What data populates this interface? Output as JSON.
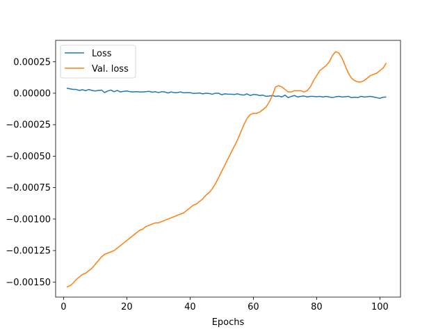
{
  "chart_data": {
    "type": "line",
    "title": "",
    "xlabel": "Epochs",
    "ylabel": "",
    "xlim": [
      -2.5,
      106.5
    ],
    "ylim": [
      -0.00162,
      0.00042
    ],
    "xticks": [
      0,
      20,
      40,
      60,
      80,
      100
    ],
    "xtick_labels": [
      "0",
      "20",
      "40",
      "60",
      "80",
      "100"
    ],
    "yticks": [
      -0.0015,
      -0.00125,
      -0.001,
      -0.00075,
      -0.0005,
      -0.00025,
      0.0,
      0.00025
    ],
    "ytick_labels": [
      "−0.00150",
      "−0.00125",
      "−0.00100",
      "−0.00075",
      "−0.00050",
      "−0.00025",
      "0.00000",
      "0.00025"
    ],
    "grid": false,
    "legend_position": "top-left",
    "series": [
      {
        "name": "Loss",
        "color": "#1f77b4",
        "x": [
          1,
          2,
          3,
          4,
          5,
          6,
          7,
          8,
          9,
          10,
          11,
          12,
          13,
          14,
          15,
          16,
          17,
          18,
          19,
          20,
          21,
          22,
          23,
          24,
          25,
          26,
          27,
          28,
          29,
          30,
          31,
          32,
          33,
          34,
          35,
          36,
          37,
          38,
          39,
          40,
          41,
          42,
          43,
          44,
          45,
          46,
          47,
          48,
          49,
          50,
          51,
          52,
          53,
          54,
          55,
          56,
          57,
          58,
          59,
          60,
          61,
          62,
          63,
          64,
          65,
          66,
          67,
          68,
          69,
          70,
          71,
          72,
          73,
          74,
          75,
          76,
          77,
          78,
          79,
          80,
          81,
          82,
          83,
          84,
          85,
          86,
          87,
          88,
          89,
          90,
          91,
          92,
          93,
          94,
          95,
          96,
          97,
          98,
          99,
          100,
          101,
          102
        ],
        "values": [
          4e-05,
          3.5e-05,
          3e-05,
          3e-05,
          2.2e-05,
          2.8e-05,
          2e-05,
          3e-05,
          2.2e-05,
          1.8e-05,
          2.2e-05,
          2.5e-05,
          5e-06,
          1.8e-05,
          2.5e-05,
          1.2e-05,
          2.2e-05,
          1e-05,
          1.5e-05,
          1.8e-05,
          1.2e-05,
          1e-05,
          1.2e-05,
          1e-05,
          1e-05,
          1.2e-05,
          1.5e-05,
          8e-06,
          1.2e-05,
          5e-06,
          1.2e-05,
          1e-05,
          2e-06,
          1e-05,
          5e-06,
          5e-06,
          1e-05,
          3e-06,
          5e-06,
          5e-06,
          -2e-06,
          0.0,
          2e-06,
          -5e-06,
          0.0,
          -2e-06,
          -8e-06,
          0.0,
          0.0,
          -1.2e-05,
          -5e-06,
          -8e-06,
          -8e-06,
          -1e-05,
          -5e-06,
          -1.2e-05,
          -1.5e-05,
          -5e-06,
          -1.8e-05,
          -1e-05,
          -1.2e-05,
          -1.8e-05,
          -1.5e-05,
          -2.5e-05,
          -2.2e-05,
          -1.8e-05,
          -2.5e-05,
          -2.2e-05,
          -3e-05,
          -1.5e-05,
          -3.5e-05,
          -2.5e-05,
          -1.8e-05,
          -3e-05,
          -2.5e-05,
          -2.2e-05,
          -3e-05,
          -2.5e-05,
          -2.5e-05,
          -2.8e-05,
          -2.5e-05,
          -3e-05,
          -2.5e-05,
          -3e-05,
          -3.5e-05,
          -2.8e-05,
          -2.5e-05,
          -3e-05,
          -2.8e-05,
          -2.5e-05,
          -3.5e-05,
          -3.2e-05,
          -3.5e-05,
          -2.5e-05,
          -3e-05,
          -2.8e-05,
          -2.5e-05,
          -3e-05,
          -3.5e-05,
          -4e-05,
          -3.2e-05,
          -3e-05
        ]
      },
      {
        "name": "Val. loss",
        "color": "#ff7f0e",
        "x": [
          1,
          2,
          3,
          4,
          5,
          6,
          7,
          8,
          9,
          10,
          11,
          12,
          13,
          14,
          15,
          16,
          17,
          18,
          19,
          20,
          21,
          22,
          23,
          24,
          25,
          26,
          27,
          28,
          29,
          30,
          31,
          32,
          33,
          34,
          35,
          36,
          37,
          38,
          39,
          40,
          41,
          42,
          43,
          44,
          45,
          46,
          47,
          48,
          49,
          50,
          51,
          52,
          53,
          54,
          55,
          56,
          57,
          58,
          59,
          60,
          61,
          62,
          63,
          64,
          65,
          66,
          67,
          68,
          69,
          70,
          71,
          72,
          73,
          74,
          75,
          76,
          77,
          78,
          79,
          80,
          81,
          82,
          83,
          84,
          85,
          86,
          87,
          88,
          89,
          90,
          91,
          92,
          93,
          94,
          95,
          96,
          97,
          98,
          99,
          100,
          101,
          102
        ],
        "values": [
          -0.00154,
          -0.00153,
          -0.00151,
          -0.00148,
          -0.00146,
          -0.00144,
          -0.00143,
          -0.00141,
          -0.00139,
          -0.00136,
          -0.00133,
          -0.0013,
          -0.00128,
          -0.00127,
          -0.00126,
          -0.00125,
          -0.00123,
          -0.00121,
          -0.00119,
          -0.00117,
          -0.00115,
          -0.00113,
          -0.00111,
          -0.00109,
          -0.00108,
          -0.00106,
          -0.00105,
          -0.00104,
          -0.00103,
          -0.00103,
          -0.00102,
          -0.00101,
          -0.001,
          -0.00099,
          -0.00098,
          -0.00097,
          -0.00096,
          -0.00095,
          -0.00093,
          -0.00091,
          -0.00089,
          -0.00088,
          -0.00086,
          -0.00084,
          -0.00081,
          -0.00079,
          -0.00076,
          -0.00072,
          -0.00067,
          -0.00062,
          -0.00057,
          -0.00052,
          -0.00047,
          -0.00042,
          -0.00037,
          -0.00031,
          -0.00025,
          -0.0002,
          -0.00017,
          -0.00016,
          -0.00016,
          -0.00015,
          -0.00013,
          -0.00011,
          -7e-05,
          -2e-05,
          5e-05,
          6e-05,
          5e-05,
          3e-05,
          1e-05,
          1e-05,
          2e-05,
          2e-05,
          2e-05,
          1e-05,
          2e-05,
          5e-05,
          0.0001,
          0.00014,
          0.00018,
          0.0002,
          0.00022,
          0.00025,
          0.0003,
          0.00033,
          0.00032,
          0.00028,
          0.00022,
          0.00016,
          0.00012,
          0.0001,
          9e-05,
          9e-05,
          0.0001,
          0.00012,
          0.00014,
          0.00015,
          0.00016,
          0.00018,
          0.0002,
          0.00024
        ]
      }
    ]
  }
}
